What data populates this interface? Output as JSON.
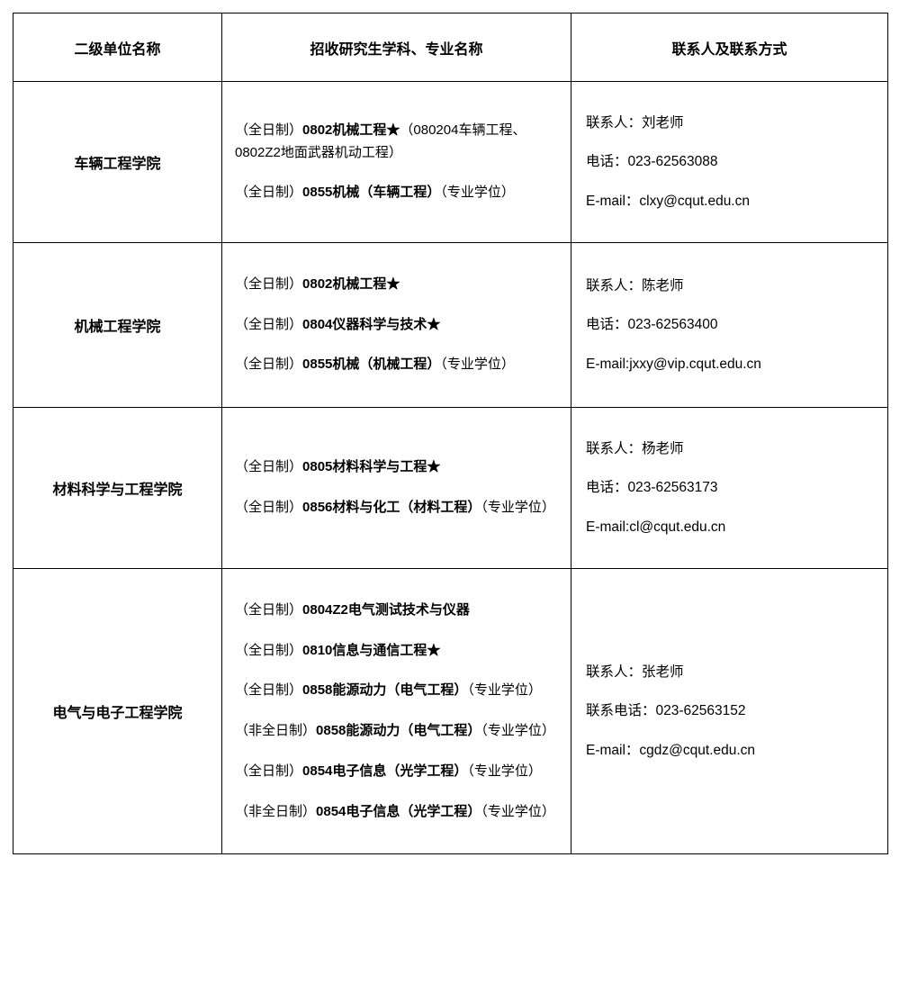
{
  "headers": {
    "col1": "二级单位名称",
    "col2": "招收研究生学科、专业名称",
    "col3": "联系人及联系方式"
  },
  "rows": [
    {
      "unit": "车辆工程学院",
      "programs": [
        {
          "prefix": "（全日制）",
          "bold": "0802机械工程★",
          "suffix": "（080204车辆工程、0802Z2地面武器机动工程）"
        },
        {
          "prefix": "（全日制）",
          "bold": "0855机械（车辆工程）",
          "suffix": "（专业学位）"
        }
      ],
      "contact": [
        "联系人：刘老师",
        "电话：023-62563088",
        "E-mail：clxy@cqut.edu.cn"
      ]
    },
    {
      "unit": "机械工程学院",
      "programs": [
        {
          "prefix": "（全日制）",
          "bold": "0802机械工程★",
          "suffix": ""
        },
        {
          "prefix": "（全日制）",
          "bold": "0804仪器科学与技术★",
          "suffix": ""
        },
        {
          "prefix": "（全日制）",
          "bold": "0855机械（机械工程）",
          "suffix": "（专业学位）"
        }
      ],
      "contact": [
        "联系人：陈老师",
        "电话：023-62563400",
        "E-mail:jxxy@vip.cqut.edu.cn"
      ]
    },
    {
      "unit": "材料科学与工程学院",
      "programs": [
        {
          "prefix": "（全日制）",
          "bold": "0805材料科学与工程★",
          "suffix": ""
        },
        {
          "prefix": "（全日制）",
          "bold": "0856材料与化工（材料工程）",
          "suffix": "（专业学位）"
        }
      ],
      "contact": [
        "联系人：杨老师",
        "电话：023-62563173",
        "E-mail:cl@cqut.edu.cn"
      ]
    },
    {
      "unit": "电气与电子工程学院",
      "programs": [
        {
          "prefix": "（全日制）",
          "bold": "0804Z2电气测试技术与仪器",
          "suffix": ""
        },
        {
          "prefix": "（全日制）",
          "bold": "0810信息与通信工程★",
          "suffix": ""
        },
        {
          "prefix": "（全日制）",
          "bold": "0858能源动力（电气工程）",
          "suffix": "（专业学位）"
        },
        {
          "prefix": "（非全日制）",
          "bold": "0858能源动力（电气工程）",
          "suffix": "（专业学位）"
        },
        {
          "prefix": "（全日制）",
          "bold": "0854电子信息（光学工程）",
          "suffix": "（专业学位）"
        },
        {
          "prefix": "（非全日制）",
          "bold": "0854电子信息（光学工程）",
          "suffix": "（专业学位）"
        }
      ],
      "contact": [
        "联系人：张老师",
        "联系电话：023-62563152",
        "E-mail：cgdz@cqut.edu.cn"
      ]
    }
  ]
}
